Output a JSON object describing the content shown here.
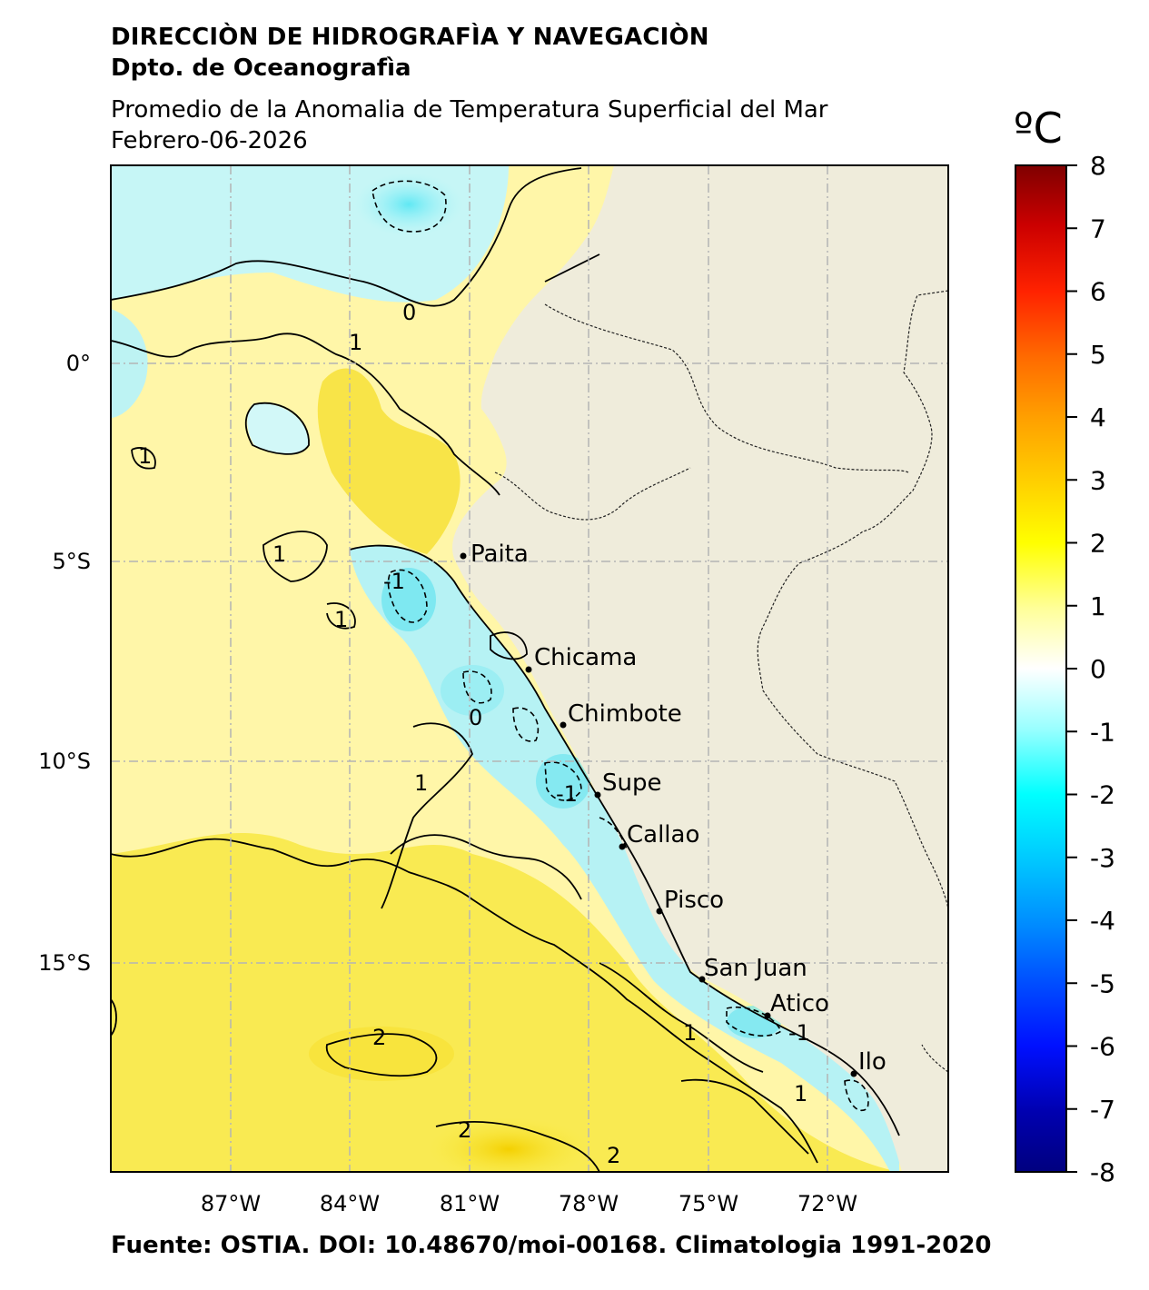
{
  "header": {
    "agency": "DIRECCIÒN DE HIDROGRAFÌA Y NAVEGACIÒN",
    "department": "Dpto. de Oceanografìa",
    "product": "Promedio de la Anomalia de Temperatura Superficial del Mar",
    "date": "Febrero-06-2026"
  },
  "colorbar": {
    "unit": "ºC",
    "ticks": [
      "8",
      "7",
      "6",
      "5",
      "4",
      "3",
      "2",
      "1",
      "0",
      "-1",
      "-2",
      "-3",
      "-4",
      "-5",
      "-6",
      "-7",
      "-8"
    ],
    "colors": [
      "#7f0000",
      "#cc0000",
      "#ff2200",
      "#ff6a00",
      "#ff9f00",
      "#ffcc00",
      "#ffff00",
      "#ffff99",
      "#ffffff",
      "#99ffff",
      "#00ffff",
      "#00c8ff",
      "#0090ff",
      "#0050ff",
      "#0010ff",
      "#0000b0",
      "#00007f"
    ]
  },
  "axes": {
    "lon_labels": [
      "87°W",
      "84°W",
      "81°W",
      "78°W",
      "75°W",
      "72°W"
    ],
    "lat_labels": [
      "0°",
      "5°S",
      "10°S",
      "15°S"
    ]
  },
  "places": [
    "Paita",
    "Chicama",
    "Chimbote",
    "Supe",
    "Callao",
    "Pisco",
    "San Juan",
    "Atico",
    "Ilo"
  ],
  "contour_labels": [
    "0",
    "-1",
    "1",
    "2",
    "-1",
    "1",
    "0",
    "1",
    "1",
    "2",
    "2",
    "1",
    "-1",
    "1",
    "1"
  ],
  "footer": "Fuente: OSTIA. DOI: 10.48670/moi-00168. Climatologia 1991-2020"
}
